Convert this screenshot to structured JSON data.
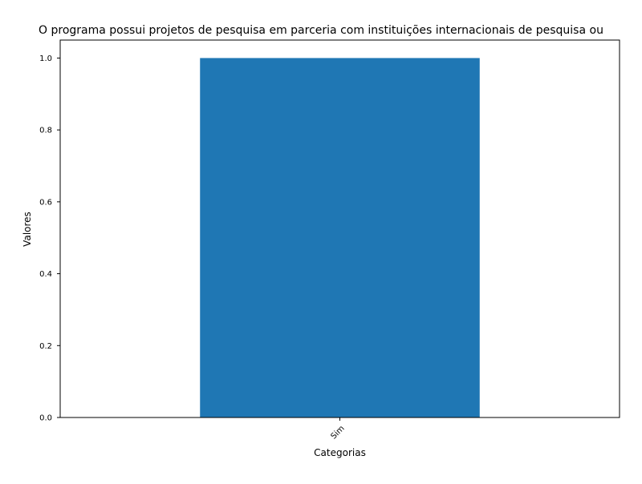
{
  "chart_data": {
    "type": "bar",
    "title": "O programa possui projetos de pesquisa em parceria com instituições internacionais de pesquisa ou",
    "xlabel": "Categorias",
    "ylabel": "Valores",
    "categories": [
      "Sim"
    ],
    "values": [
      1.0
    ],
    "ylim": [
      0,
      1.05
    ],
    "yticks": [
      "0.0",
      "0.2",
      "0.4",
      "0.6",
      "0.8",
      "1.0"
    ],
    "grid": false,
    "legend": "none",
    "colors": {
      "bar": "#1f77b4",
      "axes": "#000000",
      "background": "#ffffff"
    }
  }
}
